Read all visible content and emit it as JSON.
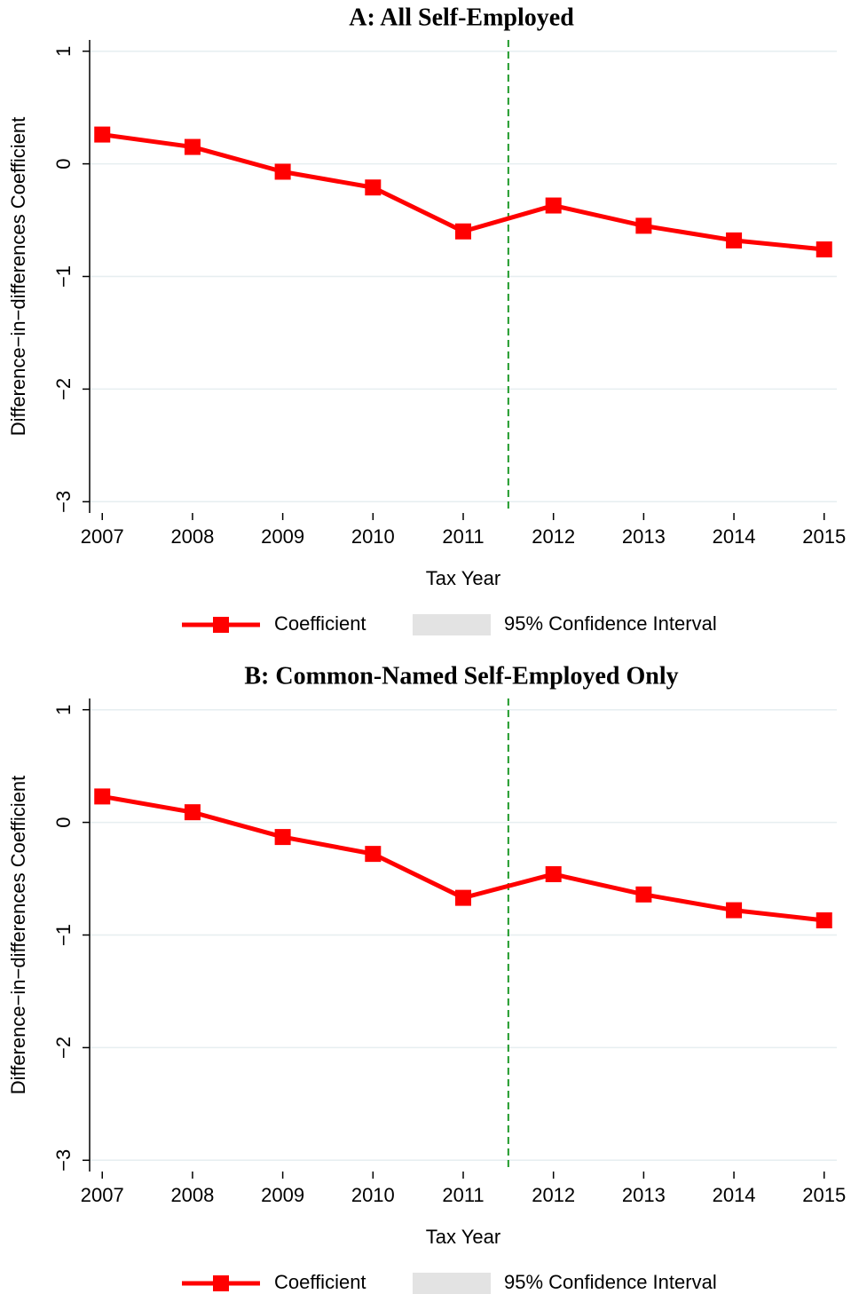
{
  "chart_data": [
    {
      "type": "line",
      "title": "A: All Self-Employed",
      "x_label": "Tax Year",
      "y_label": "Difference−in−differences Coefficient",
      "x": [
        2007,
        2008,
        2009,
        2010,
        2011,
        2012,
        2013,
        2014,
        2015
      ],
      "series": [
        {
          "name": "Coefficient",
          "color": "#ff0000",
          "values": [
            0.26,
            0.15,
            -0.07,
            -0.21,
            -0.6,
            -0.37,
            -0.55,
            -0.68,
            -0.76
          ]
        }
      ],
      "ci_legend": {
        "name": "95% Confidence Interval",
        "color": "#e3e3e3"
      },
      "vline": {
        "x": 2011.5,
        "color": "#1f9a2a"
      },
      "xlim": [
        2006.86,
        2015.14
      ],
      "xticks": [
        2007,
        2008,
        2009,
        2010,
        2011,
        2012,
        2013,
        2014,
        2015
      ],
      "ylim": [
        -3.1,
        1.1
      ],
      "yticks": [
        1,
        0,
        {
          "value": -1,
          "label": "−1"
        },
        {
          "value": -2,
          "label": "−2"
        },
        {
          "value": -3,
          "label": "−3"
        }
      ],
      "grid": true
    },
    {
      "type": "line",
      "title": "B: Common-Named Self-Employed Only",
      "x_label": "Tax Year",
      "y_label": "Difference−in−differences Coefficient",
      "x": [
        2007,
        2008,
        2009,
        2010,
        2011,
        2012,
        2013,
        2014,
        2015
      ],
      "series": [
        {
          "name": "Coefficient",
          "color": "#ff0000",
          "values": [
            0.23,
            0.09,
            -0.13,
            -0.28,
            -0.67,
            -0.46,
            -0.64,
            -0.78,
            -0.87
          ]
        }
      ],
      "ci_legend": {
        "name": "95% Confidence Interval",
        "color": "#e3e3e3"
      },
      "vline": {
        "x": 2011.5,
        "color": "#1f9a2a"
      },
      "xlim": [
        2006.86,
        2015.14
      ],
      "xticks": [
        2007,
        2008,
        2009,
        2010,
        2011,
        2012,
        2013,
        2014,
        2015
      ],
      "ylim": [
        -3.1,
        1.1
      ],
      "yticks": [
        1,
        0,
        {
          "value": -1,
          "label": "−1"
        },
        {
          "value": -2,
          "label": "−2"
        },
        {
          "value": -3,
          "label": "−3"
        }
      ],
      "grid": true
    }
  ]
}
